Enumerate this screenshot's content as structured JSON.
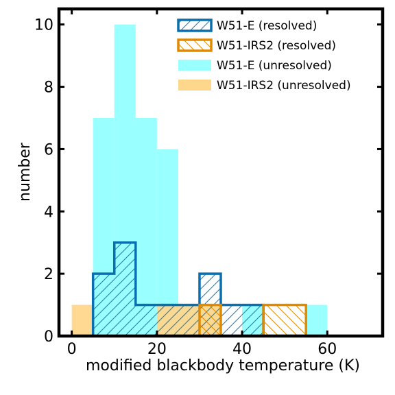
{
  "chart_data": {
    "type": "bar",
    "xlabel": "modified blackbody temperature (K)",
    "ylabel": "number",
    "xlim": [
      -3,
      73
    ],
    "ylim": [
      0,
      10.5
    ],
    "x_ticks": [
      0,
      20,
      40,
      60
    ],
    "y_ticks": [
      0,
      2,
      4,
      6,
      8,
      10
    ],
    "bin_width": 5,
    "legend_position": "top-right",
    "series": [
      {
        "name": "W51-E (unresolved)",
        "style": "filled",
        "color": "#99ffff",
        "bins": [
          [
            5,
            7
          ],
          [
            10,
            10
          ],
          [
            15,
            7
          ],
          [
            20,
            6
          ],
          [
            25,
            1
          ],
          [
            30,
            1
          ],
          [
            40,
            1
          ],
          [
            55,
            1
          ]
        ]
      },
      {
        "name": "W51-IRS2 (unresolved)",
        "style": "filled",
        "color": "#ffd78c",
        "bins": [
          [
            0,
            1
          ],
          [
            20,
            1
          ],
          [
            25,
            1
          ],
          [
            30,
            1
          ]
        ]
      },
      {
        "name": "W51-E (resolved)",
        "style": "step-hatched",
        "color": "#1f77b4",
        "edge_color": "#0a6faf",
        "hatch": "/",
        "bins": [
          [
            5,
            2
          ],
          [
            10,
            3
          ],
          [
            15,
            1
          ],
          [
            20,
            1
          ],
          [
            25,
            1
          ],
          [
            30,
            2
          ],
          [
            35,
            1
          ],
          [
            40,
            1
          ]
        ]
      },
      {
        "name": "W51-IRS2 (resolved)",
        "style": "step-hatched",
        "color": "#e08a00",
        "edge_color": "#e08a00",
        "hatch": "\\",
        "bins": [
          [
            30,
            1
          ],
          [
            45,
            1
          ],
          [
            50,
            1
          ]
        ]
      }
    ],
    "legend_order": [
      "W51-E (resolved)",
      "W51-IRS2 (resolved)",
      "W51-E (unresolved)",
      "W51-IRS2 (unresolved)"
    ]
  }
}
